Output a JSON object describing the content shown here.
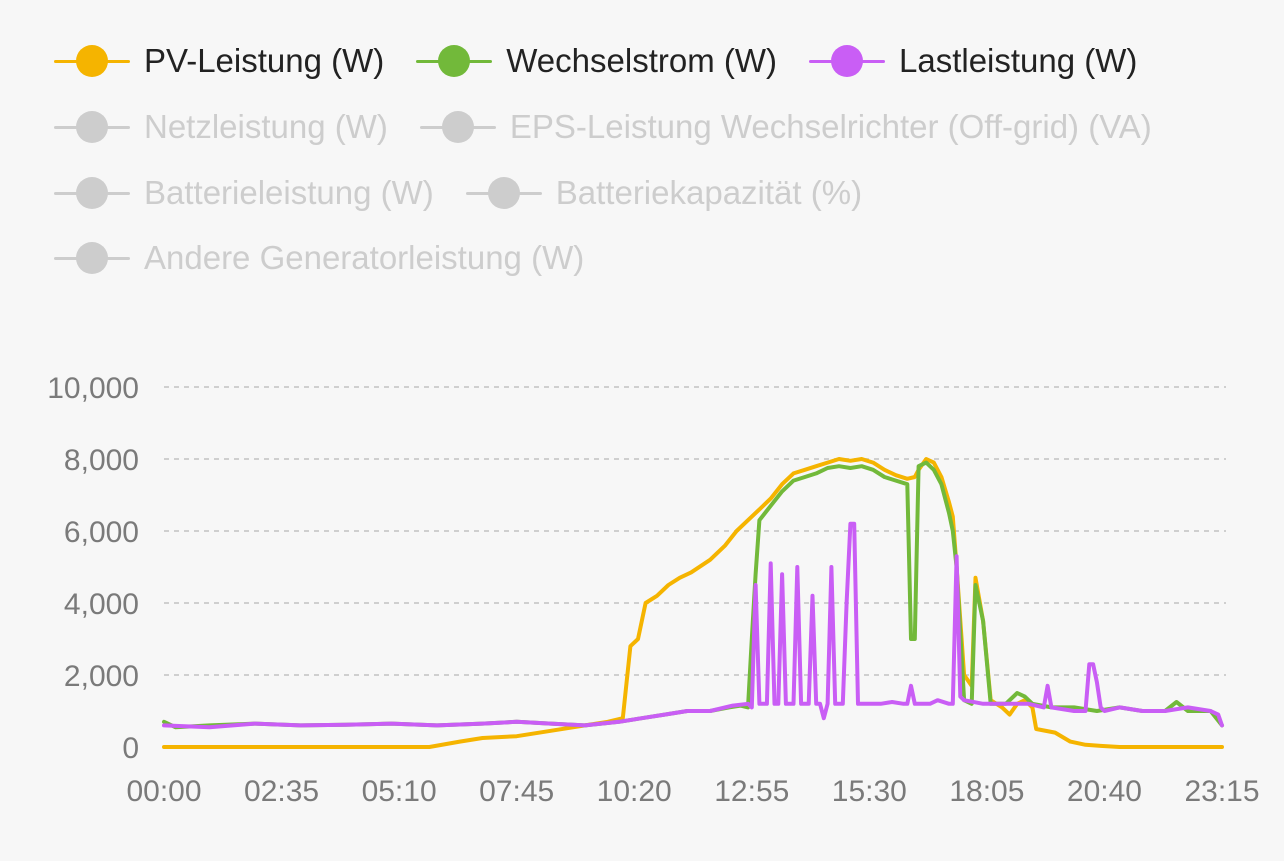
{
  "legend": {
    "rows": [
      [
        {
          "name": "PV-Leistung (W)",
          "color": "#f5b400",
          "active": true
        },
        {
          "name": "Wechselstrom (W)",
          "color": "#72b93a",
          "active": true
        },
        {
          "name": "Lastleistung (W)",
          "color": "#c95ef5",
          "active": true
        }
      ],
      [
        {
          "name": "Netzleistung (W)",
          "color": "#cdcdcd",
          "active": false
        },
        {
          "name": "EPS-Leistung Wechselrichter (Off-grid) (VA)",
          "color": "#cdcdcd",
          "active": false
        }
      ],
      [
        {
          "name": "Batterieleistung (W)",
          "color": "#cdcdcd",
          "active": false
        },
        {
          "name": "Batteriekapazität (%)",
          "color": "#cdcdcd",
          "active": false
        }
      ],
      [
        {
          "name": "Andere Generatorleistung (W)",
          "color": "#cdcdcd",
          "active": false
        }
      ]
    ]
  },
  "chart_data": {
    "type": "line",
    "x_ticks": [
      "00:00",
      "02:35",
      "05:10",
      "07:45",
      "10:20",
      "12:55",
      "15:30",
      "18:05",
      "20:40",
      "23:15"
    ],
    "y_ticks": [
      "0",
      "2,000",
      "4,000",
      "6,000",
      "8,000",
      "10,000"
    ],
    "ylim": [
      0,
      10000
    ],
    "xlim_minutes": [
      0,
      1395
    ],
    "grid": "horizontal-dashed",
    "legend_position": "top-left",
    "series": [
      {
        "name": "PV-Leistung (W)",
        "color": "#f5b400",
        "points": [
          [
            "00:00",
            0
          ],
          [
            "05:50",
            0
          ],
          [
            "06:30",
            150
          ],
          [
            "07:00",
            250
          ],
          [
            "07:45",
            300
          ],
          [
            "08:30",
            450
          ],
          [
            "09:15",
            600
          ],
          [
            "09:45",
            700
          ],
          [
            "10:05",
            800
          ],
          [
            "10:15",
            2800
          ],
          [
            "10:25",
            3000
          ],
          [
            "10:35",
            4000
          ],
          [
            "10:50",
            4200
          ],
          [
            "11:05",
            4500
          ],
          [
            "11:20",
            4700
          ],
          [
            "11:35",
            4850
          ],
          [
            "12:00",
            5200
          ],
          [
            "12:20",
            5600
          ],
          [
            "12:35",
            6000
          ],
          [
            "12:50",
            6300
          ],
          [
            "13:05",
            6600
          ],
          [
            "13:20",
            6900
          ],
          [
            "13:35",
            7300
          ],
          [
            "13:50",
            7600
          ],
          [
            "14:05",
            7700
          ],
          [
            "14:20",
            7800
          ],
          [
            "14:35",
            7900
          ],
          [
            "14:50",
            8000
          ],
          [
            "15:05",
            7950
          ],
          [
            "15:20",
            8000
          ],
          [
            "15:35",
            7900
          ],
          [
            "15:50",
            7700
          ],
          [
            "16:05",
            7550
          ],
          [
            "16:20",
            7450
          ],
          [
            "16:30",
            7500
          ],
          [
            "16:35",
            7700
          ],
          [
            "16:45",
            8000
          ],
          [
            "16:55",
            7900
          ],
          [
            "17:05",
            7500
          ],
          [
            "17:15",
            6800
          ],
          [
            "17:20",
            6400
          ],
          [
            "17:25",
            5000
          ],
          [
            "17:35",
            2000
          ],
          [
            "17:45",
            1700
          ],
          [
            "17:50",
            4700
          ],
          [
            "18:00",
            3500
          ],
          [
            "18:10",
            1300
          ],
          [
            "18:25",
            1100
          ],
          [
            "18:35",
            900
          ],
          [
            "18:45",
            1200
          ],
          [
            "18:55",
            1300
          ],
          [
            "19:05",
            1100
          ],
          [
            "19:10",
            500
          ],
          [
            "19:35",
            400
          ],
          [
            "19:55",
            150
          ],
          [
            "20:15",
            60
          ],
          [
            "20:35",
            30
          ],
          [
            "21:00",
            0
          ],
          [
            "23:15",
            0
          ]
        ]
      },
      {
        "name": "Wechselstrom (W)",
        "color": "#72b93a",
        "points": [
          [
            "00:00",
            700
          ],
          [
            "00:15",
            550
          ],
          [
            "01:00",
            600
          ],
          [
            "02:00",
            650
          ],
          [
            "03:00",
            600
          ],
          [
            "04:00",
            620
          ],
          [
            "05:00",
            650
          ],
          [
            "06:00",
            600
          ],
          [
            "07:00",
            650
          ],
          [
            "07:45",
            700
          ],
          [
            "08:30",
            650
          ],
          [
            "09:15",
            600
          ],
          [
            "10:00",
            700
          ],
          [
            "10:30",
            800
          ],
          [
            "11:00",
            900
          ],
          [
            "11:30",
            1000
          ],
          [
            "12:00",
            1000
          ],
          [
            "12:25",
            1100
          ],
          [
            "12:40",
            1150
          ],
          [
            "12:50",
            1100
          ],
          [
            "12:55",
            3000
          ],
          [
            "13:00",
            4800
          ],
          [
            "13:05",
            6300
          ],
          [
            "13:20",
            6700
          ],
          [
            "13:35",
            7100
          ],
          [
            "13:50",
            7400
          ],
          [
            "14:05",
            7500
          ],
          [
            "14:20",
            7600
          ],
          [
            "14:35",
            7750
          ],
          [
            "14:50",
            7800
          ],
          [
            "15:05",
            7750
          ],
          [
            "15:20",
            7800
          ],
          [
            "15:35",
            7700
          ],
          [
            "15:50",
            7500
          ],
          [
            "16:05",
            7400
          ],
          [
            "16:20",
            7300
          ],
          [
            "16:25",
            3000
          ],
          [
            "16:30",
            3000
          ],
          [
            "16:35",
            7800
          ],
          [
            "16:45",
            7900
          ],
          [
            "16:55",
            7700
          ],
          [
            "17:05",
            7300
          ],
          [
            "17:15",
            6500
          ],
          [
            "17:20",
            6000
          ],
          [
            "17:25",
            5000
          ],
          [
            "17:35",
            1300
          ],
          [
            "17:45",
            1200
          ],
          [
            "17:50",
            4500
          ],
          [
            "18:00",
            3500
          ],
          [
            "18:10",
            1200
          ],
          [
            "18:30",
            1200
          ],
          [
            "18:45",
            1500
          ],
          [
            "18:55",
            1400
          ],
          [
            "19:05",
            1200
          ],
          [
            "19:30",
            1100
          ],
          [
            "20:00",
            1100
          ],
          [
            "20:30",
            1000
          ],
          [
            "21:00",
            1100
          ],
          [
            "21:30",
            1000
          ],
          [
            "22:00",
            1000
          ],
          [
            "22:15",
            1250
          ],
          [
            "22:30",
            1000
          ],
          [
            "23:00",
            1000
          ],
          [
            "23:15",
            600
          ]
        ]
      },
      {
        "name": "Lastleistung (W)",
        "color": "#c95ef5",
        "points": [
          [
            "00:00",
            600
          ],
          [
            "01:00",
            550
          ],
          [
            "02:00",
            650
          ],
          [
            "03:00",
            600
          ],
          [
            "04:00",
            620
          ],
          [
            "05:00",
            650
          ],
          [
            "06:00",
            600
          ],
          [
            "07:00",
            650
          ],
          [
            "07:45",
            700
          ],
          [
            "08:30",
            650
          ],
          [
            "09:15",
            600
          ],
          [
            "10:00",
            700
          ],
          [
            "10:30",
            800
          ],
          [
            "11:00",
            900
          ],
          [
            "11:30",
            1000
          ],
          [
            "12:00",
            1000
          ],
          [
            "12:30",
            1150
          ],
          [
            "12:50",
            1200
          ],
          [
            "12:55",
            1100
          ],
          [
            "13:00",
            4500
          ],
          [
            "13:05",
            1200
          ],
          [
            "13:15",
            1200
          ],
          [
            "13:20",
            5100
          ],
          [
            "13:25",
            1200
          ],
          [
            "13:30",
            1200
          ],
          [
            "13:35",
            4800
          ],
          [
            "13:40",
            1200
          ],
          [
            "13:50",
            1200
          ],
          [
            "13:55",
            5000
          ],
          [
            "14:00",
            1200
          ],
          [
            "14:10",
            1200
          ],
          [
            "14:15",
            4200
          ],
          [
            "14:20",
            1200
          ],
          [
            "14:25",
            1200
          ],
          [
            "14:30",
            800
          ],
          [
            "14:35",
            1200
          ],
          [
            "14:40",
            5000
          ],
          [
            "14:45",
            1200
          ],
          [
            "14:55",
            1200
          ],
          [
            "15:00",
            4000
          ],
          [
            "15:05",
            6200
          ],
          [
            "15:10",
            6200
          ],
          [
            "15:15",
            1200
          ],
          [
            "15:45",
            1200
          ],
          [
            "16:00",
            1250
          ],
          [
            "16:15",
            1200
          ],
          [
            "16:20",
            1200
          ],
          [
            "16:25",
            1700
          ],
          [
            "16:30",
            1200
          ],
          [
            "16:50",
            1200
          ],
          [
            "17:00",
            1300
          ],
          [
            "17:15",
            1200
          ],
          [
            "17:20",
            1200
          ],
          [
            "17:25",
            5300
          ],
          [
            "17:30",
            1400
          ],
          [
            "17:35",
            1300
          ],
          [
            "18:00",
            1200
          ],
          [
            "18:30",
            1200
          ],
          [
            "19:00",
            1200
          ],
          [
            "19:20",
            1100
          ],
          [
            "19:25",
            1700
          ],
          [
            "19:30",
            1100
          ],
          [
            "20:00",
            1000
          ],
          [
            "20:15",
            1000
          ],
          [
            "20:20",
            2300
          ],
          [
            "20:25",
            2300
          ],
          [
            "20:30",
            1800
          ],
          [
            "20:35",
            1100
          ],
          [
            "20:40",
            1000
          ],
          [
            "21:00",
            1100
          ],
          [
            "21:30",
            1000
          ],
          [
            "22:00",
            1000
          ],
          [
            "22:30",
            1100
          ],
          [
            "23:00",
            1000
          ],
          [
            "23:10",
            900
          ],
          [
            "23:15",
            600
          ]
        ]
      }
    ]
  }
}
